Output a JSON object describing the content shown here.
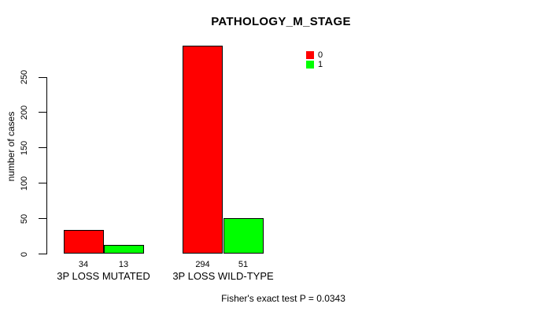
{
  "chart_data": {
    "type": "bar",
    "title": "PATHOLOGY_M_STAGE",
    "ylabel": "number of cases",
    "xlabel": "",
    "categories": [
      "3P LOSS MUTATED",
      "3P LOSS WILD-TYPE"
    ],
    "series": [
      {
        "name": "0",
        "color": "#ff0000",
        "values": [
          34,
          294
        ]
      },
      {
        "name": "1",
        "color": "#00ff00",
        "values": [
          13,
          51
        ]
      }
    ],
    "value_labels": [
      [
        34,
        13
      ],
      [
        294,
        51
      ]
    ],
    "yticks": [
      0,
      50,
      100,
      150,
      200,
      250
    ],
    "ylim": [
      0,
      294
    ],
    "grid": false,
    "legend_position": "top-right",
    "bar_border_color": "#000000",
    "axis_color": "#000000",
    "annotation": "Fisher's exact test P = 0.0343"
  }
}
